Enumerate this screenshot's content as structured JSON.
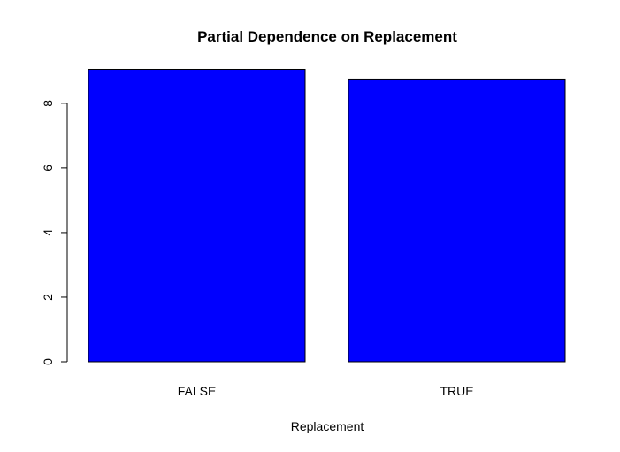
{
  "chart_data": {
    "type": "bar",
    "title": "Partial Dependence on Replacement",
    "xlabel": "Replacement",
    "ylabel": "",
    "categories": [
      "FALSE",
      "TRUE"
    ],
    "values": [
      9.05,
      8.75
    ],
    "ylim": [
      0,
      9.05
    ],
    "yticks": [
      0,
      2,
      4,
      6,
      8
    ],
    "ytick_labels": [
      "0",
      "2",
      "4",
      "6",
      "8"
    ],
    "bar_color": "#0000ff",
    "bar_border_color": "#000000",
    "grid": false,
    "legend": "none"
  }
}
